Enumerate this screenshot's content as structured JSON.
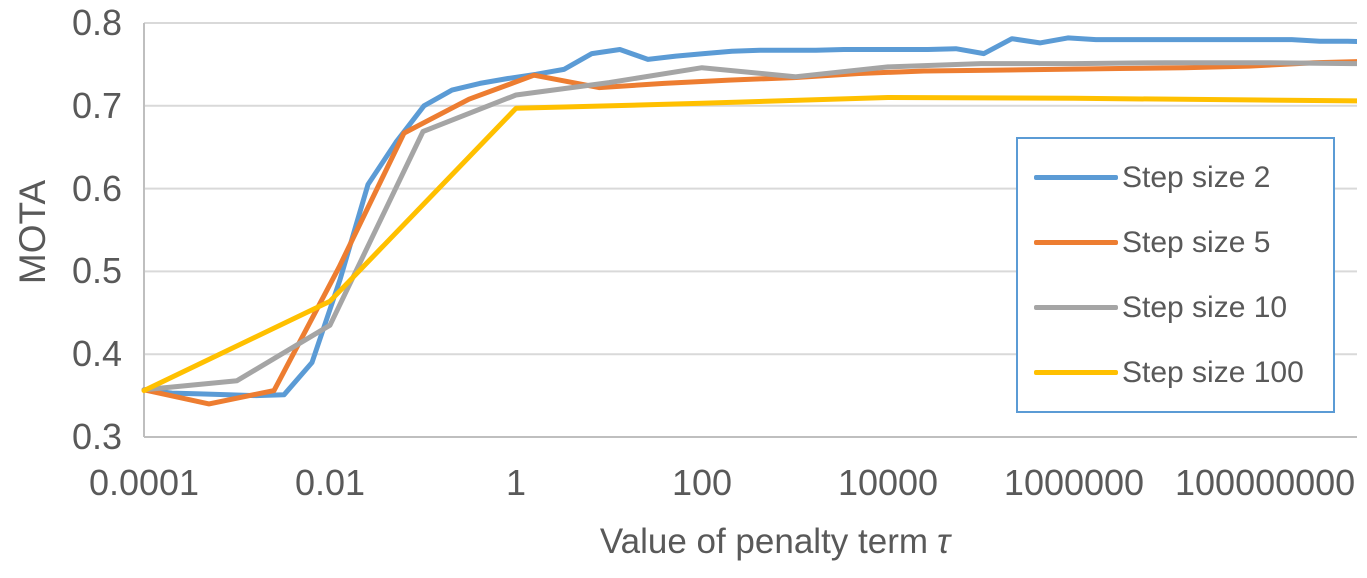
{
  "chart_data": {
    "type": "line",
    "title": "",
    "xlabel": "Value of penalty term τ",
    "xlabel_text": "Value of penalty term",
    "xlabel_symbol": "τ",
    "ylabel": "MOTA",
    "x_scale": "log",
    "grid": true,
    "legend_position": "inside-right",
    "x_ticks": [
      "0.0001",
      "0.01",
      "1",
      "100",
      "10000",
      "1000000",
      "100000000"
    ],
    "x_tick_values": [
      0.0001,
      0.01,
      1,
      100,
      10000,
      1000000,
      100000000
    ],
    "x_axis_log_range": [
      -4,
      9.04
    ],
    "y_ticks": [
      "0.8",
      "0.7",
      "0.6",
      "0.5",
      "0.4",
      "0.3"
    ],
    "y_tick_values": [
      0.8,
      0.7,
      0.6,
      0.5,
      0.4,
      0.3
    ],
    "ylim": [
      0.3,
      0.8
    ],
    "colors": {
      "accent_blue": "#5B9BD5",
      "accent_orange": "#ED7D31",
      "accent_gray": "#A5A5A5",
      "accent_yellow": "#FFC000",
      "text": "#595959",
      "gridline": "#D9D9D9",
      "axis_line": "#BFBFBF"
    },
    "series": [
      {
        "name": "Step size 2",
        "color": "#5B9BD5",
        "points": [
          [
            0.0001,
            0.357
          ],
          [
            0.0002,
            0.353
          ],
          [
            0.0004,
            0.352
          ],
          [
            0.0008,
            0.351
          ],
          [
            0.0016,
            0.35
          ],
          [
            0.0032,
            0.351
          ],
          [
            0.0064,
            0.39
          ],
          [
            0.0128,
            0.49
          ],
          [
            0.0256,
            0.605
          ],
          [
            0.0512,
            0.656
          ],
          [
            0.1024,
            0.7
          ],
          [
            0.2048,
            0.719
          ],
          [
            0.4096,
            0.727
          ],
          [
            0.8192,
            0.733
          ],
          [
            1.6384,
            0.738
          ],
          [
            3.2768,
            0.744
          ],
          [
            6.5536,
            0.763
          ],
          [
            13.107,
            0.768
          ],
          [
            26.214,
            0.756
          ],
          [
            52.429,
            0.76
          ],
          [
            104.86,
            0.763
          ],
          [
            209.72,
            0.766
          ],
          [
            419.43,
            0.767
          ],
          [
            838.86,
            0.767
          ],
          [
            1677.7,
            0.767
          ],
          [
            3355.4,
            0.768
          ],
          [
            6710.9,
            0.768
          ],
          [
            13422,
            0.768
          ],
          [
            26844,
            0.768
          ],
          [
            53687,
            0.769
          ],
          [
            107374,
            0.763
          ],
          [
            214748,
            0.781
          ],
          [
            429497,
            0.776
          ],
          [
            858993,
            0.782
          ],
          [
            1717986,
            0.78
          ],
          [
            3435974,
            0.78
          ],
          [
            6871948,
            0.78
          ],
          [
            13743895,
            0.78
          ],
          [
            27487791,
            0.78
          ],
          [
            54975581,
            0.78
          ],
          [
            109951163,
            0.78
          ],
          [
            219902326,
            0.78
          ],
          [
            439804651,
            0.778
          ],
          [
            879609302,
            0.778
          ],
          [
            1759218604,
            0.777
          ]
        ]
      },
      {
        "name": "Step size 5",
        "color": "#ED7D31",
        "points": [
          [
            0.0001,
            0.357
          ],
          [
            0.0005,
            0.34
          ],
          [
            0.0025,
            0.356
          ],
          [
            0.0125,
            0.505
          ],
          [
            0.0625,
            0.667
          ],
          [
            0.3125,
            0.708
          ],
          [
            1.5625,
            0.737
          ],
          [
            7.8125,
            0.722
          ],
          [
            39.0625,
            0.727
          ],
          [
            195.31,
            0.731
          ],
          [
            976.56,
            0.734
          ],
          [
            4882.8,
            0.739
          ],
          [
            24414,
            0.742
          ],
          [
            122070,
            0.743
          ],
          [
            610352,
            0.744
          ],
          [
            3051758,
            0.745
          ],
          [
            15258789,
            0.746
          ],
          [
            76293945,
            0.748
          ],
          [
            381469727,
            0.752
          ],
          [
            1907348633,
            0.754
          ]
        ]
      },
      {
        "name": "Step size 10",
        "color": "#A5A5A5",
        "points": [
          [
            0.0001,
            0.357
          ],
          [
            0.001,
            0.368
          ],
          [
            0.01,
            0.435
          ],
          [
            0.1,
            0.669
          ],
          [
            1,
            0.713
          ],
          [
            10,
            0.728
          ],
          [
            100,
            0.746
          ],
          [
            1000,
            0.735
          ],
          [
            10000,
            0.747
          ],
          [
            100000,
            0.751
          ],
          [
            1000000,
            0.751
          ],
          [
            10000000,
            0.752
          ],
          [
            100000000,
            0.752
          ],
          [
            1000000000,
            0.751
          ],
          [
            10000000000,
            0.751
          ]
        ]
      },
      {
        "name": "Step size 100",
        "color": "#FFC000",
        "points": [
          [
            0.0001,
            0.356
          ],
          [
            0.01,
            0.464
          ],
          [
            1,
            0.697
          ],
          [
            100,
            0.703
          ],
          [
            10000,
            0.71
          ],
          [
            1000000,
            0.709
          ],
          [
            100000000,
            0.707
          ],
          [
            10000000000,
            0.705
          ]
        ]
      }
    ]
  }
}
